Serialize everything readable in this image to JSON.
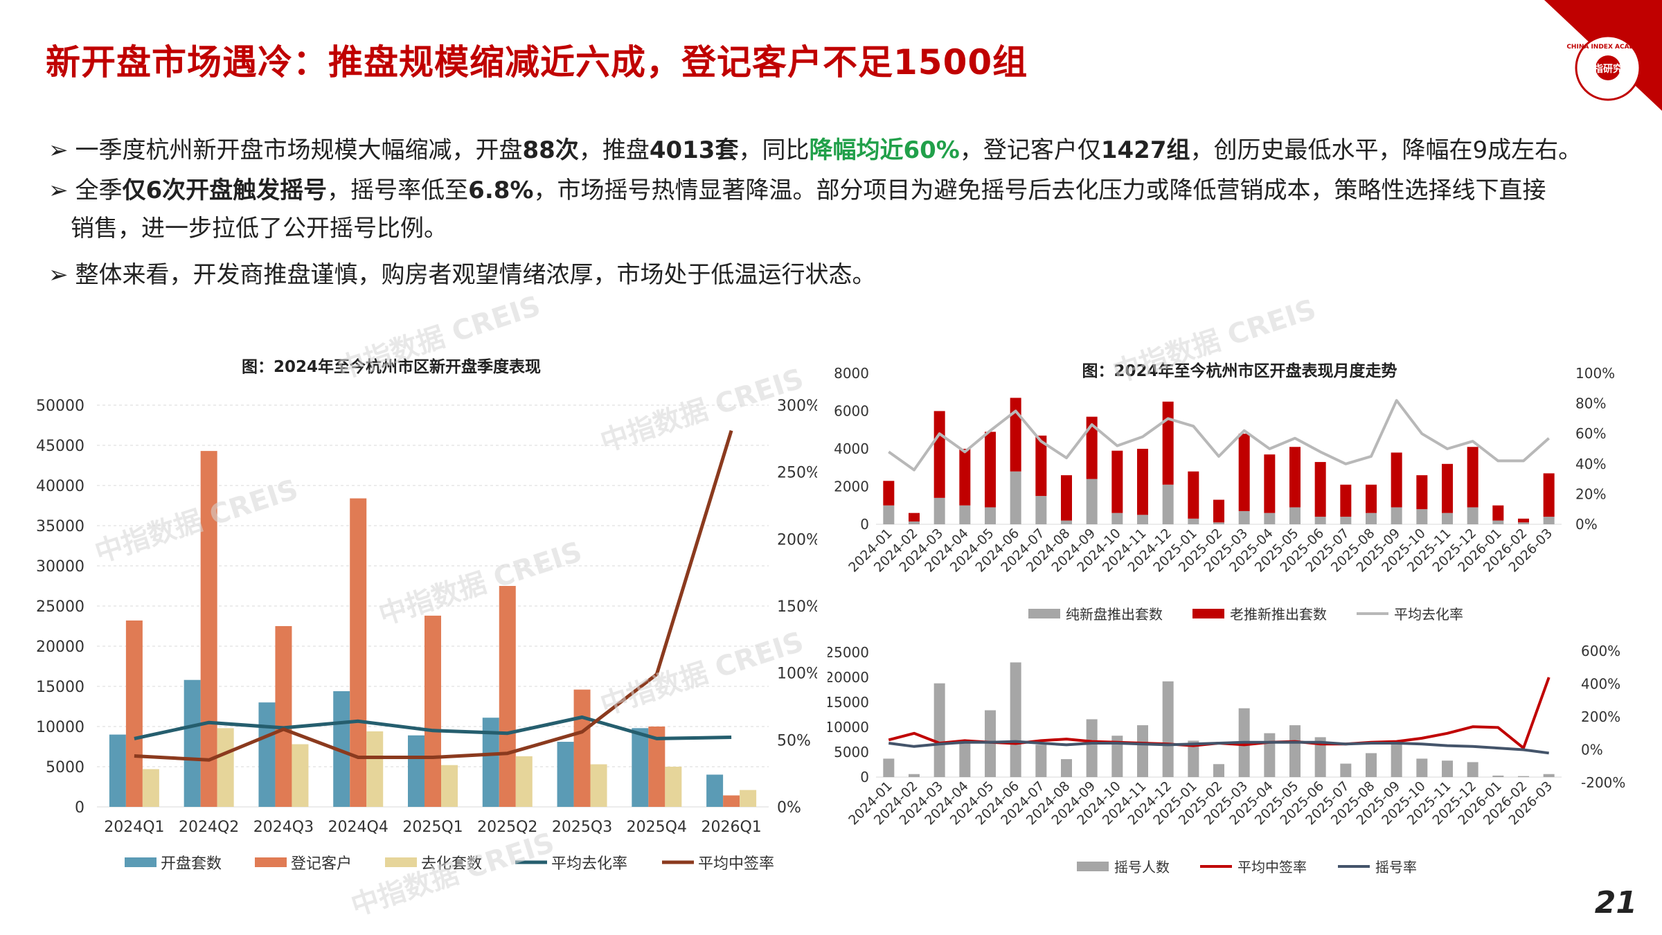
{
  "title": "新开盘市场遇冷：推盘规模缩减近六成，登记客户不足1500组",
  "page_number": "21",
  "logo": {
    "text_en": "CHINA INDEX ACADEMY",
    "text_cn": "中指研究院",
    "color": "#c00000"
  },
  "bullets": {
    "arrow": "➢",
    "b1": {
      "t1": "一季度杭州新开盘市场规模大幅缩减，开盘",
      "b1": "88次",
      "t2": "，推盘",
      "b2": "4013套",
      "t3": "，同比",
      "g1": "降幅均近60%",
      "t4": "，登记客户仅",
      "b3": "1427组",
      "t5": "，创历史最低水平，降幅在9成左右。"
    },
    "b2": {
      "t1": "全季",
      "b1": "仅6次开盘触发摇号",
      "t2": "，摇号率低至",
      "b2": "6.8%",
      "t3": "，市场摇号热情显著降温。部分项目为避免摇号后去化压力或降低营销成本，策略性选择线下直接",
      "t4": "销售，进一步拉低了公开摇号比例。"
    },
    "b3": {
      "t1": "整体来看，开发商推盘谨慎，购房者观望情绪浓厚，市场处于低温运行状态。"
    }
  },
  "watermark": {
    "text": "中指数据 CREIS"
  },
  "chart_data": [
    {
      "id": "left",
      "type": "bar",
      "title": "图：2024年至今杭州市区新开盘季度表现",
      "categories": [
        "2024Q1",
        "2024Q2",
        "2024Q3",
        "2024Q4",
        "2025Q1",
        "2025Q2",
        "2025Q3",
        "2025Q4",
        "2026Q1"
      ],
      "ylim": [
        0,
        50000
      ],
      "yticks": [
        "0",
        "5000",
        "10000",
        "15000",
        "20000",
        "25000",
        "30000",
        "35000",
        "40000",
        "45000",
        "50000"
      ],
      "y2lim": [
        0,
        300
      ],
      "y2ticks": [
        "0%",
        "50%",
        "100%",
        "150%",
        "200%",
        "250%",
        "300%"
      ],
      "series": [
        {
          "name": "开盘套数",
          "type": "bar",
          "axis": "left",
          "color": "#5b9bb5",
          "values": [
            9000,
            15800,
            13000,
            14400,
            8900,
            11100,
            8100,
            9800,
            4013
          ]
        },
        {
          "name": "登记客户",
          "type": "bar",
          "axis": "left",
          "color": "#e07b54",
          "values": [
            23200,
            44300,
            22500,
            38400,
            23800,
            27500,
            14600,
            10000,
            1427
          ]
        },
        {
          "name": "去化套数",
          "type": "bar",
          "axis": "left",
          "color": "#e6d59a",
          "values": [
            4700,
            9800,
            7800,
            9400,
            5200,
            6300,
            5300,
            5000,
            2100
          ]
        },
        {
          "name": "平均去化率",
          "type": "line",
          "axis": "right",
          "color": "#255e6e",
          "values": [
            51,
            63,
            59,
            64,
            57,
            55,
            67,
            51,
            52
          ]
        },
        {
          "name": "平均中签率",
          "type": "line",
          "axis": "right",
          "color": "#8b3a1e",
          "values": [
            38,
            35,
            58,
            37,
            37,
            40,
            56,
            99,
            281
          ]
        }
      ]
    },
    {
      "id": "top-right",
      "type": "bar",
      "title": "图：2024年至今杭州市区开盘表现月度走势",
      "categories": [
        "2024-01",
        "2024-02",
        "2024-03",
        "2024-04",
        "2024-05",
        "2024-06",
        "2024-07",
        "2024-08",
        "2024-09",
        "2024-10",
        "2024-11",
        "2024-12",
        "2025-01",
        "2025-02",
        "2025-03",
        "2025-04",
        "2025-05",
        "2025-06",
        "2025-07",
        "2025-08",
        "2025-09",
        "2025-10",
        "2025-11",
        "2025-12",
        "2026-01",
        "2026-02",
        "2026-03"
      ],
      "ylim": [
        0,
        8000
      ],
      "yticks": [
        "0",
        "2000",
        "4000",
        "6000",
        "8000"
      ],
      "y2lim": [
        0,
        100
      ],
      "y2ticks": [
        "0%",
        "20%",
        "40%",
        "60%",
        "80%",
        "100%"
      ],
      "series": [
        {
          "name": "纯新盘推出套数",
          "type": "stacked-bar",
          "color": "#a6a6a6",
          "values": [
            1000,
            150,
            1400,
            1000,
            900,
            2800,
            1500,
            200,
            2400,
            600,
            500,
            2100,
            300,
            100,
            700,
            600,
            900,
            400,
            400,
            600,
            900,
            800,
            600,
            900,
            200,
            100,
            400
          ]
        },
        {
          "name": "老推新推出套数",
          "type": "stacked-bar",
          "color": "#c00000",
          "values": [
            1300,
            450,
            4600,
            3000,
            4000,
            3900,
            3200,
            2400,
            3300,
            3300,
            3500,
            4400,
            2500,
            1200,
            4100,
            3100,
            3200,
            2900,
            1700,
            1500,
            2900,
            1800,
            2600,
            3200,
            800,
            200,
            2300
          ]
        },
        {
          "name": "平均去化率",
          "type": "line",
          "axis": "right",
          "color": "#b8b8b8",
          "values": [
            48,
            36,
            60,
            48,
            62,
            75,
            55,
            44,
            66,
            52,
            58,
            70,
            65,
            45,
            62,
            50,
            57,
            48,
            40,
            45,
            82,
            60,
            50,
            55,
            42,
            42,
            57
          ]
        }
      ]
    },
    {
      "id": "bottom-right",
      "type": "bar",
      "title": "",
      "categories": [
        "2024-01",
        "2024-02",
        "2024-03",
        "2024-04",
        "2024-05",
        "2024-06",
        "2024-07",
        "2024-08",
        "2024-09",
        "2024-10",
        "2024-11",
        "2024-12",
        "2025-01",
        "2025-02",
        "2025-03",
        "2025-04",
        "2025-05",
        "2025-06",
        "2025-07",
        "2025-08",
        "2025-09",
        "2025-10",
        "2025-11",
        "2025-12",
        "2026-01",
        "2026-02",
        "2026-03"
      ],
      "ylim": [
        0,
        25000
      ],
      "yticks": [
        "0",
        "5000",
        "10000",
        "15000",
        "20000",
        "25000"
      ],
      "y2lim": [
        -200,
        600
      ],
      "y2ticks": [
        "-200%",
        "0%",
        "200%",
        "400%",
        "600%"
      ],
      "series": [
        {
          "name": "摇号人数",
          "type": "bar",
          "color": "#a6a6a6",
          "values": [
            3700,
            600,
            18800,
            7300,
            13400,
            23000,
            6500,
            3600,
            11600,
            8300,
            10400,
            19200,
            7300,
            2600,
            13800,
            8800,
            10400,
            8000,
            2700,
            4800,
            7000,
            3700,
            3300,
            3000,
            300,
            200,
            600
          ]
        },
        {
          "name": "平均中签率",
          "type": "line",
          "axis": "right",
          "color": "#c00000",
          "values": [
            60,
            100,
            40,
            55,
            45,
            38,
            55,
            65,
            50,
            45,
            40,
            35,
            25,
            40,
            30,
            45,
            50,
            35,
            35,
            45,
            50,
            70,
            100,
            140,
            135,
            10,
            440
          ]
        },
        {
          "name": "摇号率",
          "type": "line",
          "axis": "right",
          "color": "#44546a",
          "values": [
            40,
            20,
            35,
            45,
            45,
            50,
            40,
            30,
            40,
            40,
            35,
            30,
            35,
            40,
            45,
            45,
            45,
            45,
            35,
            40,
            40,
            35,
            25,
            20,
            10,
            0,
            -20
          ]
        }
      ]
    }
  ]
}
